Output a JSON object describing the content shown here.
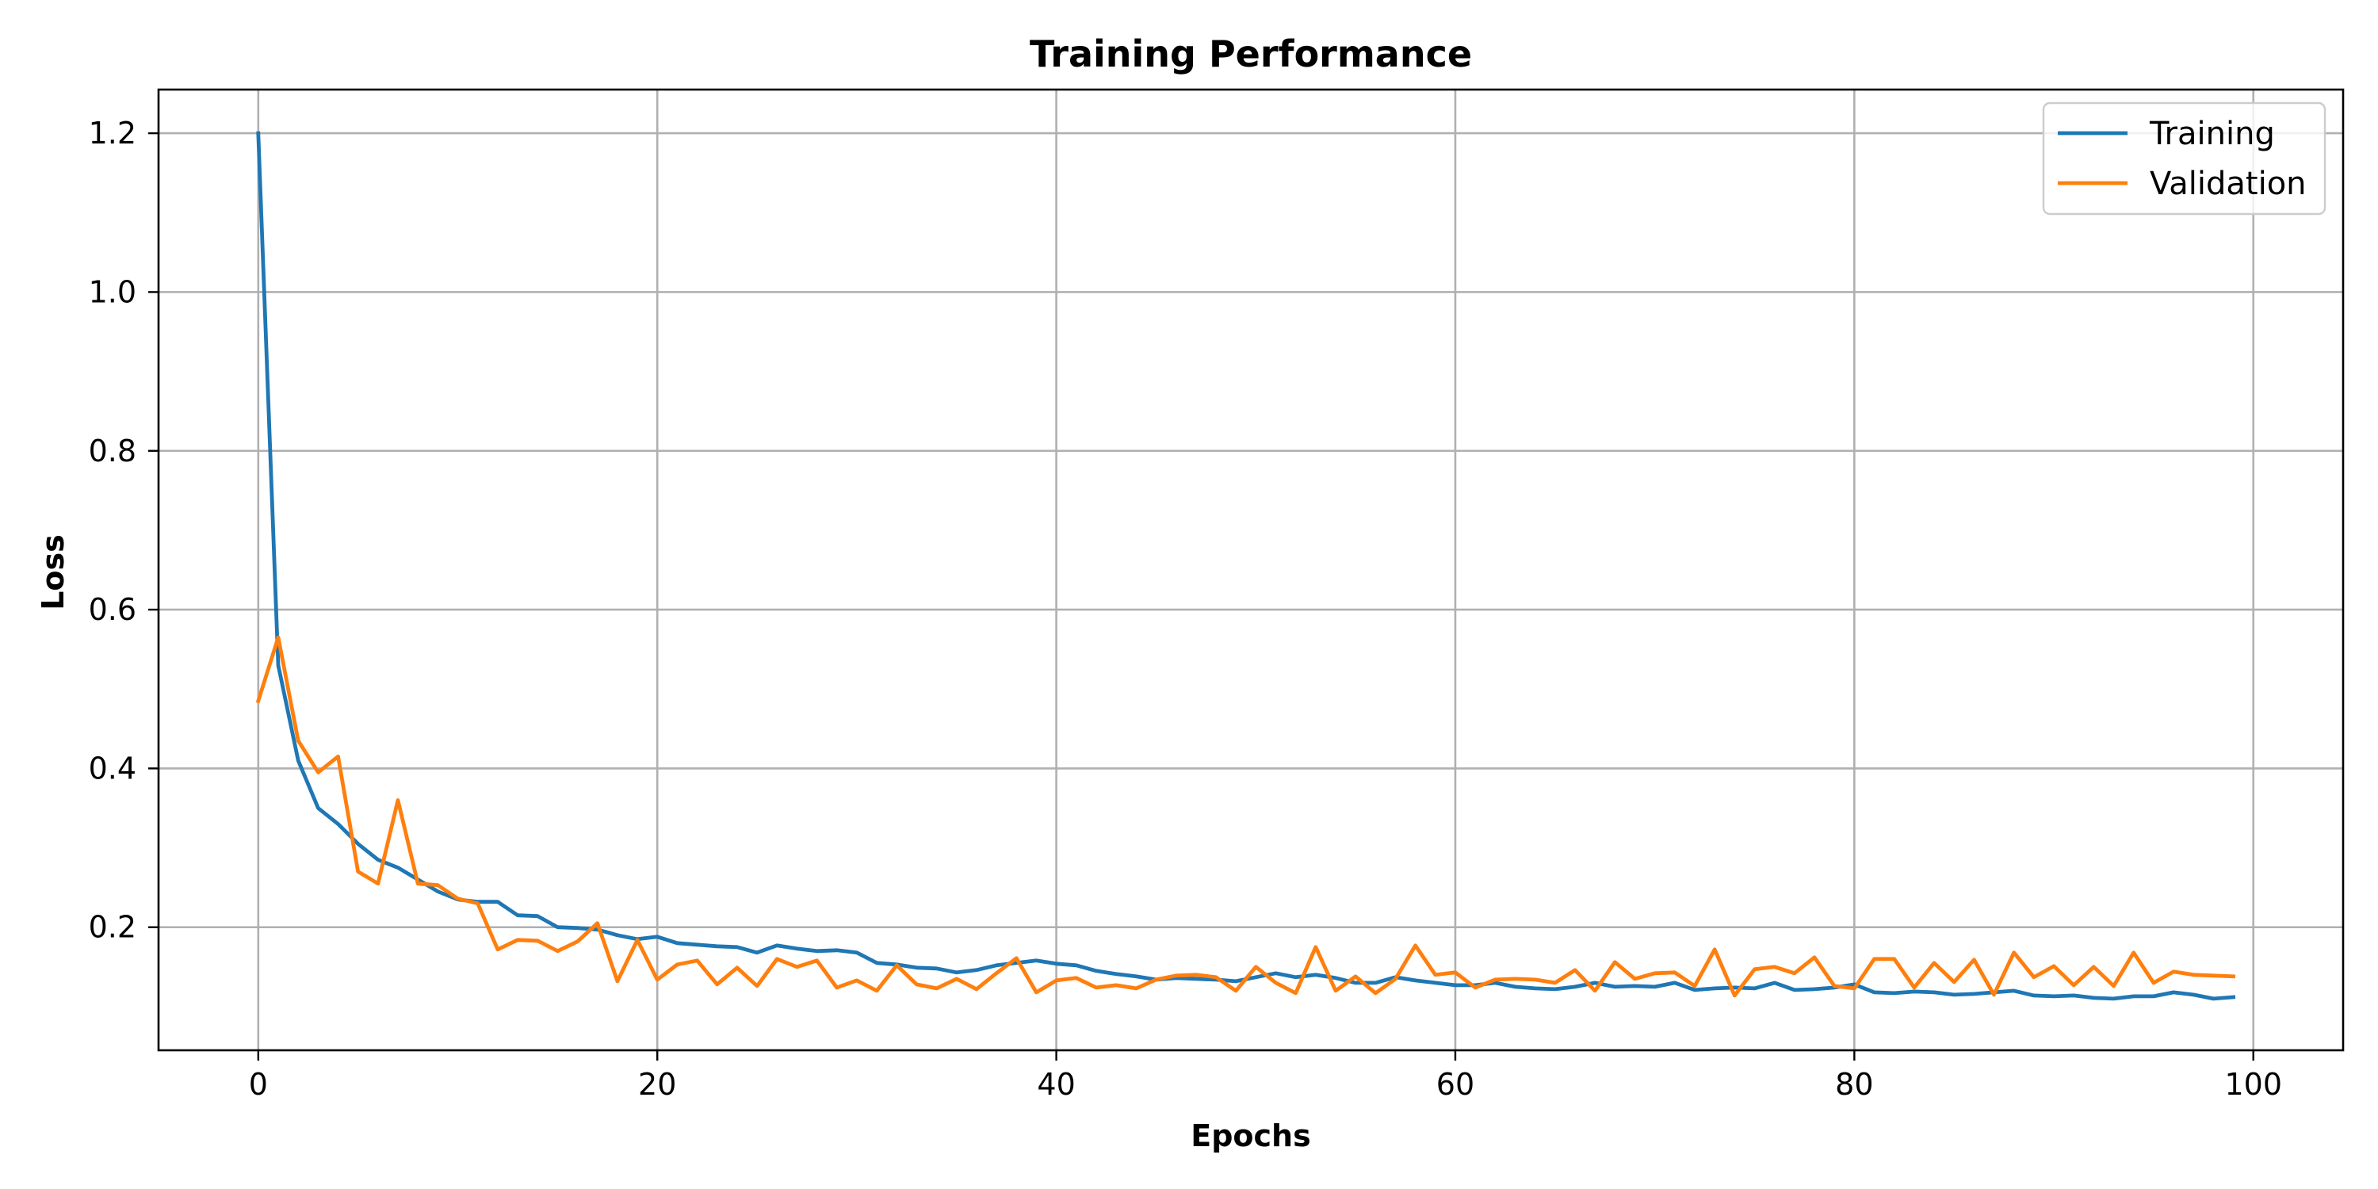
{
  "chart_data": {
    "type": "line",
    "title": "Training Performance",
    "xlabel": "Epochs",
    "ylabel": "Loss",
    "xlim": [
      -5,
      104.5
    ],
    "ylim": [
      0.045,
      1.255
    ],
    "xticks": [
      0,
      20,
      40,
      60,
      80,
      100
    ],
    "yticks": [
      0.2,
      0.4,
      0.6,
      0.8,
      1.0,
      1.2
    ],
    "xtick_labels": [
      "0",
      "20",
      "40",
      "60",
      "80",
      "100"
    ],
    "ytick_labels": [
      "0.2",
      "0.4",
      "0.6",
      "0.8",
      "1.0",
      "1.2"
    ],
    "grid": true,
    "legend_position": "top-right",
    "series": [
      {
        "name": "Training",
        "color": "#1f77b4",
        "x": [
          0,
          1,
          2,
          3,
          4,
          5,
          6,
          7,
          8,
          9,
          10,
          11,
          12,
          13,
          14,
          15,
          16,
          17,
          18,
          19,
          20,
          21,
          22,
          23,
          24,
          25,
          26,
          27,
          28,
          29,
          30,
          31,
          32,
          33,
          34,
          35,
          36,
          37,
          38,
          39,
          40,
          41,
          42,
          43,
          44,
          45,
          46,
          47,
          48,
          49,
          50,
          51,
          52,
          53,
          54,
          55,
          56,
          57,
          58,
          59,
          60,
          61,
          62,
          63,
          64,
          65,
          66,
          67,
          68,
          69,
          70,
          71,
          72,
          73,
          74,
          75,
          76,
          77,
          78,
          79,
          80,
          81,
          82,
          83,
          84,
          85,
          86,
          87,
          88,
          89,
          90,
          91,
          92,
          93,
          94,
          95,
          96,
          97,
          98,
          99
        ],
        "values": [
          1.2,
          0.53,
          0.41,
          0.35,
          0.33,
          0.305,
          0.285,
          0.275,
          0.26,
          0.245,
          0.235,
          0.232,
          0.232,
          0.215,
          0.214,
          0.2,
          0.199,
          0.197,
          0.19,
          0.185,
          0.188,
          0.18,
          0.178,
          0.176,
          0.175,
          0.168,
          0.177,
          0.173,
          0.17,
          0.171,
          0.168,
          0.155,
          0.153,
          0.149,
          0.148,
          0.143,
          0.146,
          0.152,
          0.155,
          0.158,
          0.154,
          0.152,
          0.145,
          0.141,
          0.138,
          0.134,
          0.136,
          0.135,
          0.134,
          0.132,
          0.137,
          0.142,
          0.137,
          0.14,
          0.136,
          0.13,
          0.13,
          0.137,
          0.133,
          0.13,
          0.127,
          0.127,
          0.13,
          0.125,
          0.123,
          0.122,
          0.125,
          0.13,
          0.125,
          0.126,
          0.125,
          0.13,
          0.121,
          0.123,
          0.124,
          0.123,
          0.13,
          0.121,
          0.122,
          0.124,
          0.128,
          0.118,
          0.117,
          0.119,
          0.118,
          0.115,
          0.116,
          0.118,
          0.12,
          0.114,
          0.113,
          0.114,
          0.111,
          0.11,
          0.113,
          0.113,
          0.118,
          0.115,
          0.11,
          0.112
        ]
      },
      {
        "name": "Validation",
        "color": "#ff7f0e",
        "x": [
          0,
          1,
          2,
          3,
          4,
          5,
          6,
          7,
          8,
          9,
          10,
          11,
          12,
          13,
          14,
          15,
          16,
          17,
          18,
          19,
          20,
          21,
          22,
          23,
          24,
          25,
          26,
          27,
          28,
          29,
          30,
          31,
          32,
          33,
          34,
          35,
          36,
          37,
          38,
          39,
          40,
          41,
          42,
          43,
          44,
          45,
          46,
          47,
          48,
          49,
          50,
          51,
          52,
          53,
          54,
          55,
          56,
          57,
          58,
          59,
          60,
          61,
          62,
          63,
          64,
          65,
          66,
          67,
          68,
          69,
          70,
          71,
          72,
          73,
          74,
          75,
          76,
          77,
          78,
          79,
          80,
          81,
          82,
          83,
          84,
          85,
          86,
          87,
          88,
          89,
          90,
          91,
          92,
          93,
          94,
          95,
          96,
          97,
          98,
          99
        ],
        "values": [
          0.485,
          0.565,
          0.435,
          0.395,
          0.415,
          0.27,
          0.255,
          0.36,
          0.255,
          0.253,
          0.236,
          0.23,
          0.172,
          0.184,
          0.183,
          0.17,
          0.182,
          0.205,
          0.132,
          0.184,
          0.134,
          0.153,
          0.158,
          0.128,
          0.149,
          0.126,
          0.16,
          0.15,
          0.158,
          0.124,
          0.133,
          0.12,
          0.152,
          0.128,
          0.123,
          0.135,
          0.122,
          0.142,
          0.161,
          0.118,
          0.133,
          0.136,
          0.124,
          0.127,
          0.123,
          0.134,
          0.139,
          0.14,
          0.137,
          0.12,
          0.15,
          0.13,
          0.117,
          0.175,
          0.12,
          0.138,
          0.117,
          0.135,
          0.177,
          0.14,
          0.143,
          0.124,
          0.134,
          0.135,
          0.134,
          0.13,
          0.146,
          0.12,
          0.156,
          0.135,
          0.142,
          0.143,
          0.126,
          0.172,
          0.114,
          0.147,
          0.15,
          0.142,
          0.162,
          0.126,
          0.123,
          0.16,
          0.16,
          0.124,
          0.155,
          0.131,
          0.159,
          0.115,
          0.168,
          0.137,
          0.151,
          0.127,
          0.15,
          0.126,
          0.168,
          0.13,
          0.144,
          0.14,
          0.139,
          0.138
        ]
      }
    ]
  }
}
